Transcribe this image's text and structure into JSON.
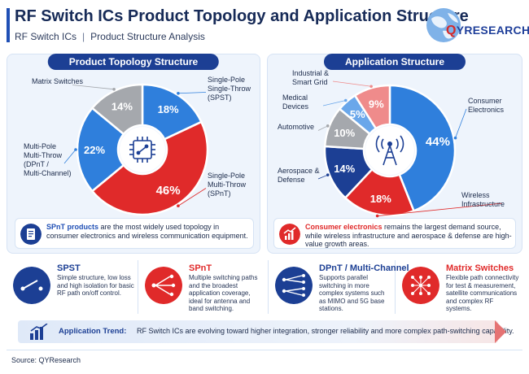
{
  "header": {
    "title": "RF Switch ICs Product Topology and Application Structure",
    "subtitle_left": "RF Switch ICs",
    "subtitle_sep": "|",
    "subtitle_right": "Product Structure Analysis"
  },
  "logo": {
    "q": "Q",
    "rest": "YRESEARCH"
  },
  "colors": {
    "blue": "#2f7fdc",
    "red": "#e02a2a",
    "gray": "#a5a8ad",
    "navy": "#1c3f94",
    "light_blue": "#6aa7ea",
    "pink": "#ef8b8b"
  },
  "chart_data": [
    {
      "type": "pie",
      "title": "Product Topology Structure",
      "categories": [
        "Single-Pole Single-Throw (SPST)",
        "Single-Pole Multi-Throw (SPnT)",
        "Multi-Pole Multi-Throw (DPnT / Multi-Channel)",
        "Matrix Switches"
      ],
      "values": [
        18,
        46,
        22,
        14
      ],
      "value_labels": [
        "18%",
        "46%",
        "22%",
        "14%"
      ],
      "slice_colors": [
        "#2f7fdc",
        "#e02a2a",
        "#2f7fdc",
        "#a5a8ad"
      ],
      "callouts": [
        {
          "lines": [
            "Single-Pole",
            "Single-Throw",
            "(SPST)"
          ]
        },
        {
          "lines": [
            "Single-Pole",
            "Multi-Throw",
            "(SPnT)"
          ]
        },
        {
          "lines": [
            "Multi-Pole",
            "Multi-Throw",
            "(DPnT /",
            "Multi-Channel)"
          ]
        },
        {
          "lines": [
            "Matrix Switches"
          ]
        }
      ],
      "center_icon": "chip-icon"
    },
    {
      "type": "pie",
      "title": "Application Structure",
      "categories": [
        "Consumer Electronics",
        "Wireless Infrastructure",
        "Aerospace & Defense",
        "Automotive",
        "Medical Devices",
        "Industrial & Smart Grid"
      ],
      "values": [
        44,
        18,
        14,
        10,
        5,
        9
      ],
      "value_labels": [
        "44%",
        "18%",
        "14%",
        "10%",
        "5%",
        "9%"
      ],
      "slice_colors": [
        "#2f7fdc",
        "#e02a2a",
        "#1c3f94",
        "#a5a8ad",
        "#6aa7ea",
        "#ef8b8b"
      ],
      "callouts": [
        {
          "lines": [
            "Consumer",
            "Electronics"
          ]
        },
        {
          "lines": [
            "Wireless",
            "Infrastructure"
          ]
        },
        {
          "lines": [
            "Aerospace &",
            "Defense"
          ]
        },
        {
          "lines": [
            "Automotive"
          ]
        },
        {
          "lines": [
            "Medical",
            "Devices"
          ]
        },
        {
          "lines": [
            "Industrial &",
            "Smart Grid"
          ]
        }
      ],
      "center_icon": "cell-tower-icon"
    }
  ],
  "notes": {
    "left": {
      "lead": "SPnT products",
      "text": " are the most widely used topology in consumer electronics and wireless communication equipment.",
      "icon": "document-icon"
    },
    "right": {
      "lead": "Consumer electronics",
      "text": " remains the largest demand source, while wireless infrastructure and aerospace & defense are high-value growth areas.",
      "icon": "growth-chart-icon"
    }
  },
  "cards": [
    {
      "title": "SPST",
      "desc": "Simple structure, low loss and high isolation for basic RF path on/off control.",
      "color": "#1c3f94",
      "title_color": "#1c3f94",
      "icon": "spst-switch-icon"
    },
    {
      "title": "SPnT",
      "desc": "Multiple switching paths and the broadest application coverage, ideal for antenna and band switching.",
      "color": "#e02a2a",
      "title_color": "#e02a2a",
      "icon": "spnt-switch-icon"
    },
    {
      "title": "DPnT / Multi-Channel",
      "desc": "Supports parallel switching in more complex systems such as MIMO and 5G base stations.",
      "color": "#1c3f94",
      "title_color": "#1c3f94",
      "icon": "dpnt-switch-icon"
    },
    {
      "title": "Matrix Switches",
      "desc": "Flexible path connectivity for test & measurement, satellite communications and complex RF systems.",
      "color": "#e02a2a",
      "title_color": "#e02a2a",
      "icon": "matrix-switch-icon"
    }
  ],
  "trend": {
    "label": "Application Trend:",
    "text": "RF Switch ICs are evolving toward higher integration, stronger reliability and more complex path-switching capability."
  },
  "source": "Source: QYResearch"
}
